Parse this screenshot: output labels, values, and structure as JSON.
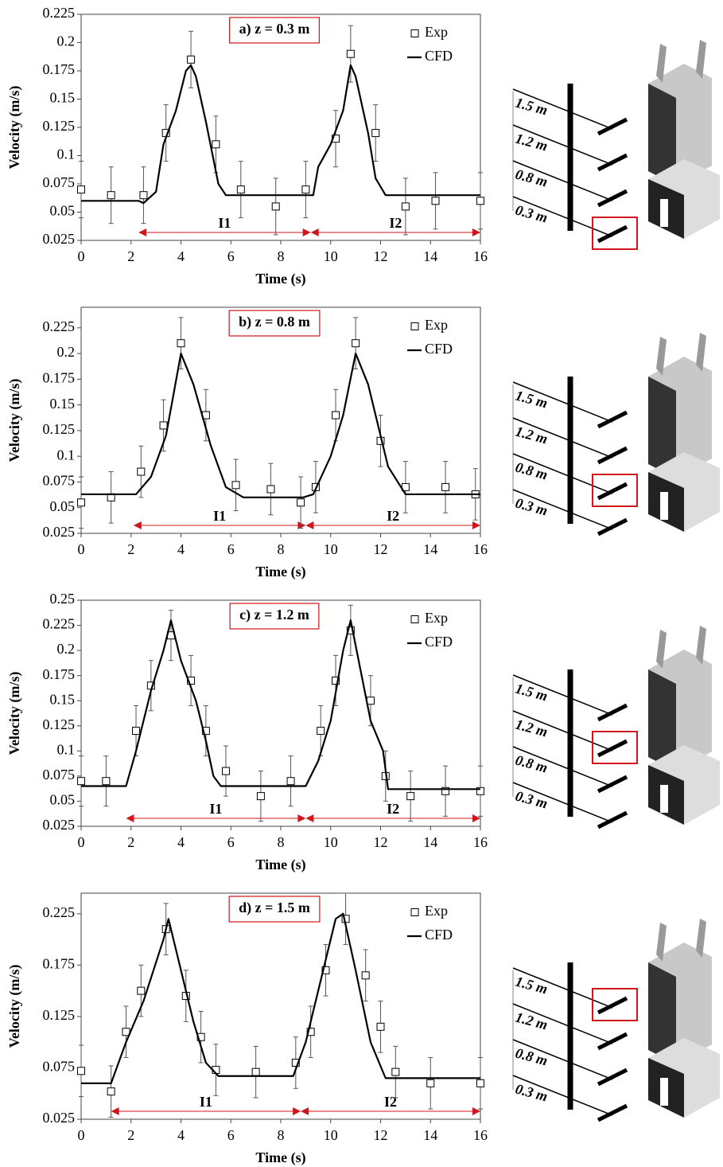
{
  "chart_data": [
    {
      "type": "line",
      "title": "a) z = 0.3 m",
      "xlabel": "Time (s)",
      "ylabel": "Velocity (m/s)",
      "xlim": [
        0,
        16
      ],
      "xticks": [
        0,
        2,
        4,
        6,
        8,
        10,
        12,
        14,
        16
      ],
      "ylim": [
        0.025,
        0.225
      ],
      "yticks": [
        0.025,
        0.05,
        0.075,
        0.1,
        0.125,
        0.15,
        0.175,
        0.2,
        0.225
      ],
      "series": [
        {
          "name": "Exp",
          "mode": "markers",
          "color": "#000000",
          "x": [
            0,
            1.2,
            2.5,
            3.4,
            4.4,
            5.4,
            6.4,
            7.8,
            9.0,
            10.2,
            10.8,
            11.8,
            13,
            14.2,
            16
          ],
          "values": [
            0.07,
            0.065,
            0.065,
            0.12,
            0.185,
            0.11,
            0.07,
            0.055,
            0.07,
            0.115,
            0.19,
            0.12,
            0.055,
            0.06,
            0.06
          ],
          "errors": [
            0.025,
            0.025,
            0.025,
            0.025,
            0.025,
            0.025,
            0.025,
            0.025,
            0.025,
            0.025,
            0.025,
            0.025,
            0.025,
            0.025,
            0.025
          ]
        },
        {
          "name": "CFD",
          "mode": "line",
          "color": "#000000",
          "x": [
            0,
            2.3,
            2.5,
            3.0,
            3.3,
            3.8,
            4.2,
            4.4,
            4.6,
            5.0,
            5.5,
            5.8,
            6,
            9.3,
            9.5,
            10,
            10.5,
            10.8,
            11,
            11.5,
            11.8,
            12.2,
            16
          ],
          "values": [
            0.06,
            0.06,
            0.058,
            0.068,
            0.11,
            0.14,
            0.175,
            0.18,
            0.17,
            0.13,
            0.075,
            0.065,
            0.065,
            0.065,
            0.09,
            0.11,
            0.14,
            0.18,
            0.17,
            0.12,
            0.08,
            0.065,
            0.065
          ]
        }
      ],
      "intervals": [
        {
          "label": "I1",
          "start": 2.3,
          "end": 9.2
        },
        {
          "label": "I2",
          "start": 9.2,
          "end": 16
        }
      ],
      "schematic_labels": [
        "1.5 m",
        "1.2 m",
        "0.8 m",
        "0.3 m"
      ],
      "highlight": 3
    },
    {
      "type": "line",
      "title": "b) z = 0.8 m",
      "xlabel": "Time (s)",
      "ylabel": "Velocity (m/s)",
      "xlim": [
        0,
        16
      ],
      "xticks": [
        0,
        2,
        4,
        6,
        8,
        10,
        12,
        14,
        16
      ],
      "ylim": [
        0.025,
        0.245
      ],
      "yticks": [
        0.025,
        0.05,
        0.075,
        0.1,
        0.125,
        0.15,
        0.175,
        0.2,
        0.225
      ],
      "series": [
        {
          "name": "Exp",
          "mode": "markers",
          "color": "#000000",
          "x": [
            0,
            1.2,
            2.4,
            3.3,
            4.0,
            5.0,
            6.2,
            7.6,
            8.8,
            9.4,
            10.2,
            11,
            12,
            13,
            14.6,
            15.8
          ],
          "values": [
            0.055,
            0.06,
            0.085,
            0.13,
            0.21,
            0.14,
            0.072,
            0.068,
            0.055,
            0.07,
            0.14,
            0.21,
            0.115,
            0.07,
            0.07,
            0.063
          ],
          "errors": [
            0.025,
            0.025,
            0.025,
            0.025,
            0.025,
            0.025,
            0.025,
            0.025,
            0.025,
            0.025,
            0.025,
            0.025,
            0.025,
            0.025,
            0.025,
            0.025
          ]
        },
        {
          "name": "CFD",
          "mode": "line",
          "color": "#000000",
          "x": [
            0,
            2.2,
            2.8,
            3.4,
            4,
            4.5,
            5.2,
            5.8,
            6.5,
            8.9,
            9.3,
            10,
            10.5,
            11,
            11.5,
            12.3,
            13,
            16
          ],
          "values": [
            0.063,
            0.063,
            0.08,
            0.12,
            0.2,
            0.17,
            0.11,
            0.07,
            0.06,
            0.06,
            0.063,
            0.1,
            0.14,
            0.2,
            0.17,
            0.09,
            0.063,
            0.063
          ]
        }
      ],
      "intervals": [
        {
          "label": "I1",
          "start": 2.1,
          "end": 9.0
        },
        {
          "label": "I2",
          "start": 9.0,
          "end": 16
        }
      ],
      "schematic_labels": [
        "1.5 m",
        "1.2 m",
        "0.8 m",
        "0.3 m"
      ],
      "highlight": 2
    },
    {
      "type": "line",
      "title": "c) z = 1.2 m",
      "xlabel": "Time (s)",
      "ylabel": "Velocity (m/s)",
      "xlim": [
        0,
        16
      ],
      "xticks": [
        0,
        2,
        4,
        6,
        8,
        10,
        12,
        14,
        16
      ],
      "ylim": [
        0.025,
        0.25
      ],
      "yticks": [
        0.025,
        0.05,
        0.075,
        0.1,
        0.125,
        0.15,
        0.175,
        0.2,
        0.225,
        0.25
      ],
      "series": [
        {
          "name": "Exp",
          "mode": "markers",
          "color": "#000000",
          "x": [
            0,
            1,
            2.2,
            2.8,
            3.6,
            4.4,
            5,
            5.8,
            7.2,
            8.4,
            9.6,
            10.2,
            10.8,
            11.6,
            12.2,
            13.2,
            14.6,
            16
          ],
          "values": [
            0.07,
            0.07,
            0.12,
            0.165,
            0.215,
            0.17,
            0.12,
            0.08,
            0.055,
            0.07,
            0.12,
            0.17,
            0.22,
            0.15,
            0.075,
            0.055,
            0.06,
            0.06
          ],
          "errors": [
            0.025,
            0.025,
            0.025,
            0.025,
            0.025,
            0.025,
            0.025,
            0.025,
            0.025,
            0.025,
            0.025,
            0.025,
            0.025,
            0.025,
            0.025,
            0.025,
            0.025,
            0.025
          ]
        },
        {
          "name": "CFD",
          "mode": "line",
          "color": "#000000",
          "x": [
            0,
            1.8,
            2.2,
            2.8,
            3.3,
            3.6,
            4,
            4.6,
            5,
            5.3,
            5.6,
            9,
            9.5,
            10,
            10.5,
            10.8,
            11.2,
            11.6,
            12.1,
            12.3,
            16
          ],
          "values": [
            0.065,
            0.065,
            0.1,
            0.16,
            0.2,
            0.23,
            0.19,
            0.15,
            0.11,
            0.075,
            0.065,
            0.065,
            0.09,
            0.13,
            0.2,
            0.23,
            0.18,
            0.13,
            0.1,
            0.062,
            0.062
          ]
        }
      ],
      "intervals": [
        {
          "label": "I1",
          "start": 1.8,
          "end": 9.0
        },
        {
          "label": "I2",
          "start": 9.0,
          "end": 16
        }
      ],
      "schematic_labels": [
        "1.5 m",
        "1.2 m",
        "0.8 m",
        "0.3 m"
      ],
      "highlight": 1
    },
    {
      "type": "line",
      "title": "d) z = 1.5 m",
      "xlabel": "Time (s)",
      "ylabel": "Velocity (m/s)",
      "xlim": [
        0,
        16
      ],
      "xticks": [
        0,
        2,
        4,
        6,
        8,
        10,
        12,
        14,
        16
      ],
      "ylim": [
        0.025,
        0.245
      ],
      "yticks": [
        0.025,
        0.075,
        0.125,
        0.175,
        0.225
      ],
      "series": [
        {
          "name": "Exp",
          "mode": "markers",
          "color": "#000000",
          "x": [
            0,
            1.2,
            1.8,
            2.4,
            3.4,
            4.2,
            4.8,
            5.4,
            7,
            8.6,
            9.2,
            9.8,
            10.6,
            11.4,
            12,
            12.6,
            14,
            16
          ],
          "values": [
            0.072,
            0.052,
            0.11,
            0.15,
            0.21,
            0.145,
            0.105,
            0.073,
            0.071,
            0.08,
            0.11,
            0.17,
            0.22,
            0.165,
            0.115,
            0.071,
            0.06,
            0.06
          ],
          "errors": [
            0.025,
            0.025,
            0.025,
            0.025,
            0.025,
            0.025,
            0.025,
            0.025,
            0.025,
            0.025,
            0.025,
            0.025,
            0.025,
            0.025,
            0.025,
            0.025,
            0.025,
            0.025
          ]
        },
        {
          "name": "CFD",
          "mode": "line",
          "color": "#000000",
          "x": [
            0,
            1.2,
            1.8,
            2.5,
            3.3,
            3.5,
            4,
            4.5,
            5,
            5.5,
            8.5,
            9,
            9.7,
            10.2,
            10.5,
            11,
            11.6,
            12.2,
            16
          ],
          "values": [
            0.06,
            0.06,
            0.1,
            0.14,
            0.2,
            0.22,
            0.17,
            0.12,
            0.08,
            0.067,
            0.067,
            0.1,
            0.17,
            0.22,
            0.225,
            0.17,
            0.1,
            0.065,
            0.065
          ]
        }
      ],
      "intervals": [
        {
          "label": "I1",
          "start": 1.2,
          "end": 8.8
        },
        {
          "label": "I2",
          "start": 8.8,
          "end": 16
        }
      ],
      "schematic_labels": [
        "1.5 m",
        "1.2 m",
        "0.8 m",
        "0.3 m"
      ],
      "highlight": 0
    }
  ]
}
